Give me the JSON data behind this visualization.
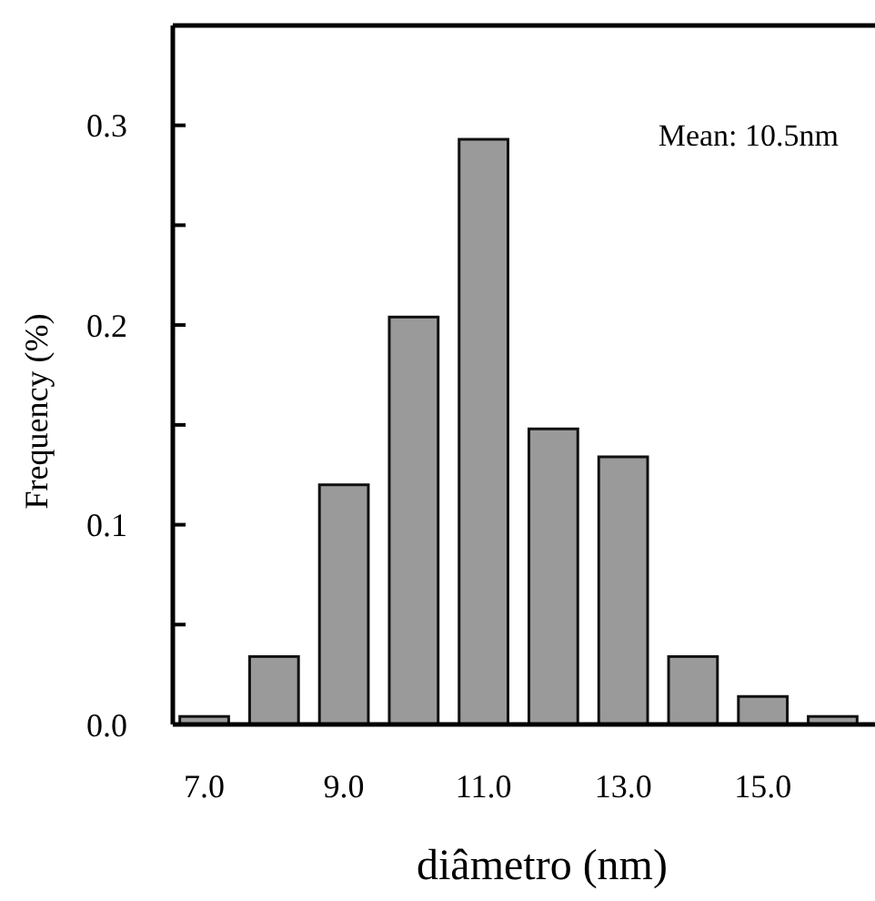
{
  "chart_data": {
    "type": "bar",
    "xlabel": "diâmetro (nm)",
    "ylabel": "Frequency (%)",
    "annotations": [
      "Mean: 10.5nm"
    ],
    "x": [
      7,
      8,
      9,
      10,
      11,
      12,
      13,
      14,
      15,
      16
    ],
    "values": [
      0.004,
      0.034,
      0.12,
      0.204,
      0.293,
      0.148,
      0.134,
      0.034,
      0.014,
      0.004
    ],
    "color": "#9a9a9a",
    "xlim": [
      6.55,
      16.45
    ],
    "xticks": [
      {
        "value": 7,
        "label": "7.0"
      },
      {
        "value": 9,
        "label": "9.0"
      },
      {
        "value": 11,
        "label": "11.0"
      },
      {
        "value": 13,
        "label": "13.0"
      },
      {
        "value": 15,
        "label": "15.0"
      }
    ],
    "ylim": [
      0,
      0.35
    ],
    "yticks": [
      {
        "value": 0,
        "label": "0.0"
      },
      {
        "value": 0.05,
        "label": null
      },
      0.1,
      {
        "value": 0.15,
        "label": null
      },
      0.2,
      {
        "value": 0.25,
        "label": null
      },
      0.3
    ],
    "grid": false
  }
}
